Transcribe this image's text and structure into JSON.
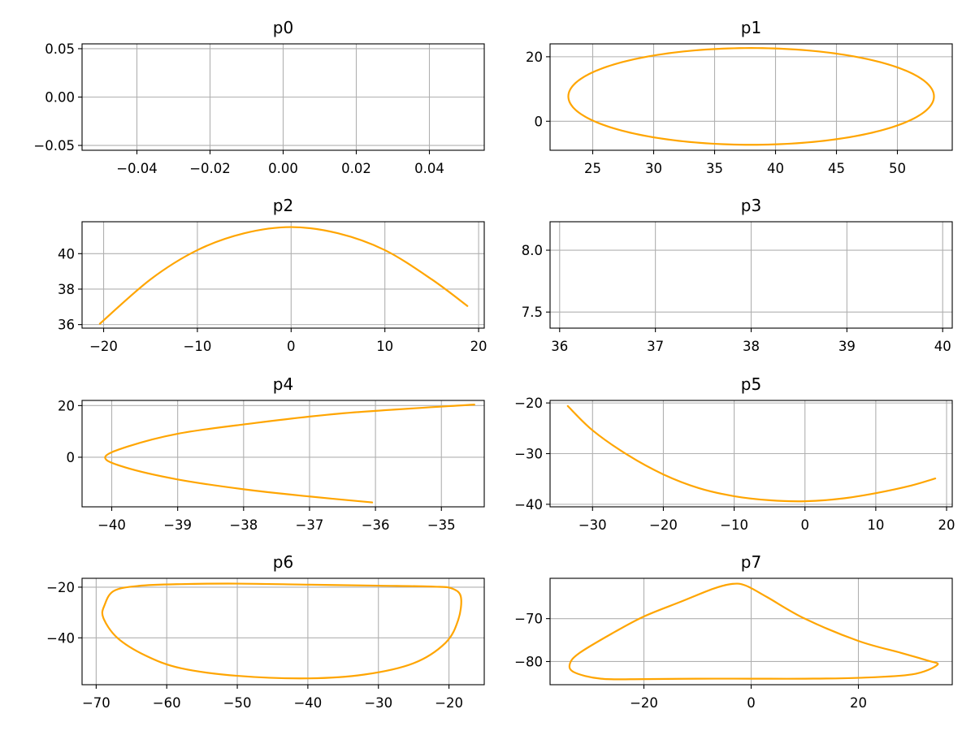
{
  "chart_data": [
    {
      "type": "line",
      "title": "p0",
      "line_color": "#ffa500",
      "grid": true,
      "xlim": [
        -0.055,
        0.055
      ],
      "ylim": [
        -0.055,
        0.055
      ],
      "xticks": [
        -0.04,
        -0.02,
        0.0,
        0.02,
        0.04
      ],
      "xticklabels": [
        "−0.04",
        "−0.02",
        "0.00",
        "0.02",
        "0.04"
      ],
      "yticks": [
        -0.05,
        0.0,
        0.05
      ],
      "yticklabels": [
        "−0.05",
        "0.00",
        "0.05"
      ],
      "series": [
        {
          "shape": "empty",
          "x": [],
          "y": []
        }
      ]
    },
    {
      "type": "line",
      "title": "p1",
      "line_color": "#ffa500",
      "grid": true,
      "xlim": [
        21.5,
        54.5
      ],
      "ylim": [
        -9,
        24
      ],
      "xticks": [
        25,
        30,
        35,
        40,
        45,
        50
      ],
      "xticklabels": [
        "25",
        "30",
        "35",
        "40",
        "45",
        "50"
      ],
      "yticks": [
        0,
        20
      ],
      "yticklabels": [
        "0",
        "20"
      ],
      "series": [
        {
          "shape": "ellipse",
          "cx": 38,
          "cy": 7.7,
          "rx": 15,
          "ry": 15,
          "points": 200
        }
      ]
    },
    {
      "type": "line",
      "title": "p2",
      "line_color": "#ffa500",
      "grid": true,
      "xlim": [
        -22.3,
        20.6
      ],
      "ylim": [
        35.8,
        41.8
      ],
      "xticks": [
        -20,
        -10,
        0,
        10,
        20
      ],
      "xticklabels": [
        "−20",
        "−10",
        "0",
        "10",
        "20"
      ],
      "yticks": [
        36,
        38,
        40
      ],
      "yticklabels": [
        "36",
        "38",
        "40"
      ],
      "series": [
        {
          "shape": "points",
          "x": [
            -20.4,
            -15,
            -10,
            -5,
            0,
            5,
            10,
            15,
            18.8
          ],
          "y": [
            36.05,
            38.55,
            40.2,
            41.15,
            41.5,
            41.15,
            40.2,
            38.55,
            37.05
          ]
        }
      ]
    },
    {
      "type": "line",
      "title": "p3",
      "line_color": "#ffa500",
      "grid": true,
      "xlim": [
        35.9,
        40.1
      ],
      "ylim": [
        7.37,
        8.23
      ],
      "xticks": [
        36,
        37,
        38,
        39,
        40
      ],
      "xticklabels": [
        "36",
        "37",
        "38",
        "39",
        "40"
      ],
      "yticks": [
        7.5,
        8.0
      ],
      "yticklabels": [
        "7.5",
        "8.0"
      ],
      "series": [
        {
          "shape": "empty",
          "x": [],
          "y": []
        }
      ]
    },
    {
      "type": "line",
      "title": "p4",
      "line_color": "#ffa500",
      "grid": true,
      "xlim": [
        -40.45,
        -34.35
      ],
      "ylim": [
        -19.2,
        22
      ],
      "xticks": [
        -40,
        -39,
        -38,
        -37,
        -36,
        -35
      ],
      "xticklabels": [
        "−40",
        "−39",
        "−38",
        "−37",
        "−36",
        "−35"
      ],
      "yticks": [
        0,
        20
      ],
      "yticklabels": [
        "0",
        "20"
      ],
      "series": [
        {
          "shape": "points",
          "x": [
            -34.5,
            -36.5,
            -38,
            -39,
            -39.75,
            -40.1,
            -39.8,
            -39,
            -38,
            -37,
            -36.05
          ],
          "y": [
            20.4,
            17,
            12.7,
            9.1,
            4.2,
            0,
            -3.9,
            -8.6,
            -12.4,
            -15.2,
            -17.5
          ]
        }
      ]
    },
    {
      "type": "line",
      "title": "p5",
      "line_color": "#ffa500",
      "grid": true,
      "xlim": [
        -36,
        20.8
      ],
      "ylim": [
        -40.5,
        -19.5
      ],
      "xticks": [
        -30,
        -20,
        -10,
        0,
        10,
        20
      ],
      "xticklabels": [
        "−30",
        "−20",
        "−10",
        "0",
        "10",
        "20"
      ],
      "yticks": [
        -40,
        -30,
        -20
      ],
      "yticklabels": [
        "−40",
        "−30",
        "−20"
      ],
      "series": [
        {
          "shape": "points",
          "x": [
            -33.5,
            -30,
            -25,
            -20,
            -15,
            -10,
            -5,
            0,
            5,
            10,
            15,
            18.4
          ],
          "y": [
            -20.6,
            -25.4,
            -30.3,
            -34.1,
            -36.8,
            -38.4,
            -39.2,
            -39.4,
            -38.9,
            -37.8,
            -36.3,
            -34.9
          ]
        }
      ]
    },
    {
      "type": "line",
      "title": "p6",
      "line_color": "#ffa500",
      "grid": true,
      "xlim": [
        -72,
        -15
      ],
      "ylim": [
        -58.5,
        -16.5
      ],
      "xticks": [
        -70,
        -60,
        -50,
        -40,
        -30,
        -20
      ],
      "xticklabels": [
        "−70",
        "−60",
        "−50",
        "−40",
        "−30",
        "−20"
      ],
      "yticks": [
        -40,
        -20
      ],
      "yticklabels": [
        "−40",
        "−20"
      ],
      "series": [
        {
          "shape": "points",
          "closed": true,
          "x": [
            -68.8,
            -67.5,
            -64,
            -58,
            -50,
            -40,
            -30,
            -22,
            -19.5,
            -18.3,
            -18.7,
            -20.5,
            -25,
            -32,
            -40,
            -50,
            -58,
            -63,
            -67,
            -69
          ],
          "y": [
            -27,
            -21.5,
            -19.5,
            -18.8,
            -18.6,
            -19.0,
            -19.4,
            -19.8,
            -20.6,
            -24,
            -33,
            -42,
            -50,
            -54.5,
            -56,
            -55,
            -52,
            -47,
            -40,
            -32
          ]
        }
      ]
    },
    {
      "type": "line",
      "title": "p7",
      "line_color": "#ffa500",
      "grid": true,
      "xlim": [
        -37.5,
        37.5
      ],
      "ylim": [
        -85.4,
        -60.6
      ],
      "xticks": [
        -20,
        0,
        20
      ],
      "xticklabels": [
        "−20",
        "0",
        "20"
      ],
      "yticks": [
        -80,
        -70
      ],
      "yticklabels": [
        "−80",
        "−70"
      ],
      "series": [
        {
          "shape": "points",
          "closed": true,
          "x": [
            -33.8,
            -32,
            -26,
            -20,
            -13,
            -7,
            -3.5,
            -1,
            3,
            10,
            20,
            28,
            33,
            34.7,
            30,
            20,
            10,
            0,
            -10,
            -20,
            -28,
            -33
          ],
          "y": [
            -80.5,
            -78,
            -73.5,
            -69.5,
            -66,
            -63,
            -61.9,
            -62.3,
            -65,
            -70,
            -75.2,
            -78,
            -79.8,
            -80.8,
            -83,
            -83.8,
            -84,
            -84,
            -84,
            -84.1,
            -84,
            -82.5
          ]
        }
      ]
    }
  ]
}
